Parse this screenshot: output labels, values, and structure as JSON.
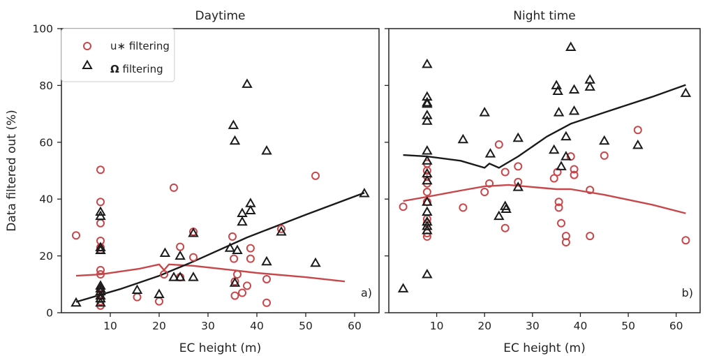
{
  "chart_data": [
    {
      "type": "scatter",
      "title": "Daytime",
      "panel_tag": "a)",
      "xlabel": "EC height (m)",
      "ylabel": "Data filtered out (%)",
      "xlim": [
        0,
        65
      ],
      "ylim": [
        0,
        100
      ],
      "xticks": [
        10,
        20,
        30,
        40,
        50,
        60
      ],
      "yticks": [
        0,
        20,
        40,
        60,
        80,
        100
      ],
      "grid": false,
      "legend_position": "top-left",
      "series": [
        {
          "name": "u* filtering",
          "kind": "points",
          "marker": "circle",
          "color": "#c8474b",
          "points": [
            [
              3,
              27.2
            ],
            [
              8,
              50.3
            ],
            [
              8,
              39
            ],
            [
              8,
              31.5
            ],
            [
              8,
              25.3
            ],
            [
              8,
              23
            ],
            [
              8,
              22.2
            ],
            [
              8,
              15
            ],
            [
              8,
              13.5
            ],
            [
              8,
              8
            ],
            [
              8,
              6.5
            ],
            [
              8,
              4
            ],
            [
              8,
              2.5
            ],
            [
              15.5,
              5.5
            ],
            [
              20,
              4
            ],
            [
              21,
              13.5
            ],
            [
              23,
              44
            ],
            [
              24.3,
              23.2
            ],
            [
              24.3,
              12.5
            ],
            [
              27,
              28.5
            ],
            [
              27,
              19.5
            ],
            [
              35,
              26.8
            ],
            [
              35.3,
              19
            ],
            [
              35.5,
              11
            ],
            [
              35.5,
              6
            ],
            [
              36,
              13.5
            ],
            [
              37,
              7
            ],
            [
              38,
              9.5
            ],
            [
              38.7,
              22.7
            ],
            [
              38.7,
              19
            ],
            [
              42,
              11.8
            ],
            [
              42,
              3.5
            ],
            [
              45,
              29.5
            ],
            [
              52,
              48.2
            ]
          ]
        },
        {
          "name": "Ω filtering",
          "kind": "points",
          "marker": "triangle",
          "color": "#1a1a1a",
          "points": [
            [
              3,
              3.5
            ],
            [
              8,
              35.5
            ],
            [
              8,
              34
            ],
            [
              8,
              23
            ],
            [
              8,
              22
            ],
            [
              8,
              9.5
            ],
            [
              8,
              8.5
            ],
            [
              8,
              7.5
            ],
            [
              8,
              6
            ],
            [
              8,
              5
            ],
            [
              8,
              3.5
            ],
            [
              15.5,
              8
            ],
            [
              20,
              6.5
            ],
            [
              21.2,
              21
            ],
            [
              23,
              12.5
            ],
            [
              24.3,
              20
            ],
            [
              24.3,
              12.5
            ],
            [
              27,
              28
            ],
            [
              27,
              12.5
            ],
            [
              34.5,
              22.8
            ],
            [
              35.2,
              66
            ],
            [
              35.5,
              60.5
            ],
            [
              35.5,
              10.5
            ],
            [
              36,
              22
            ],
            [
              37,
              32
            ],
            [
              37,
              35
            ],
            [
              38,
              80.5
            ],
            [
              38.7,
              38.5
            ],
            [
              38.7,
              36
            ],
            [
              42,
              57
            ],
            [
              42,
              18
            ],
            [
              45,
              28.5
            ],
            [
              52,
              17.5
            ],
            [
              62,
              42
            ]
          ]
        },
        {
          "name": "",
          "kind": "line",
          "color": "#c8474b",
          "points": [
            [
              3,
              13
            ],
            [
              8,
              13.5
            ],
            [
              16,
              15.5
            ],
            [
              20,
              17
            ],
            [
              21,
              15
            ],
            [
              22,
              17
            ],
            [
              27,
              16.5
            ],
            [
              35,
              15
            ],
            [
              40,
              14
            ],
            [
              50,
              12.5
            ],
            [
              58,
              11
            ]
          ]
        },
        {
          "name": "",
          "kind": "line",
          "color": "#1a1a1a",
          "points": [
            [
              3,
              3.8
            ],
            [
              12,
              8.3
            ],
            [
              20,
              13
            ],
            [
              27,
              18
            ],
            [
              38,
              26.5
            ],
            [
              50,
              34.5
            ],
            [
              62,
              42.2
            ]
          ]
        }
      ]
    },
    {
      "type": "scatter",
      "title": "Night time",
      "panel_tag": "b)",
      "xlabel": "EC height (m)",
      "ylabel": "",
      "xlim": [
        0,
        65
      ],
      "ylim": [
        0,
        100
      ],
      "xticks": [
        10,
        20,
        30,
        40,
        50,
        60
      ],
      "yticks": [
        0,
        20,
        40,
        60,
        80,
        100
      ],
      "grid": false,
      "series": [
        {
          "name": "u* filtering",
          "kind": "points",
          "marker": "circle",
          "color": "#c8474b",
          "points": [
            [
              3,
              37.3
            ],
            [
              8,
              52.5
            ],
            [
              8,
              50
            ],
            [
              8,
              48
            ],
            [
              8,
              45.5
            ],
            [
              8,
              42.5
            ],
            [
              8,
              39
            ],
            [
              8,
              33
            ],
            [
              8,
              31.5
            ],
            [
              8,
              28
            ],
            [
              8,
              26.8
            ],
            [
              15.5,
              37
            ],
            [
              20,
              42.5
            ],
            [
              21,
              45.5
            ],
            [
              23,
              59.2
            ],
            [
              24.3,
              49.5
            ],
            [
              24.3,
              29.8
            ],
            [
              27,
              51.5
            ],
            [
              27,
              46
            ],
            [
              34.5,
              47.3
            ],
            [
              35.2,
              49.5
            ],
            [
              35.5,
              39
            ],
            [
              35.5,
              37
            ],
            [
              36,
              31.5
            ],
            [
              37,
              27
            ],
            [
              37,
              24.8
            ],
            [
              38,
              55
            ],
            [
              38.7,
              50.5
            ],
            [
              38.7,
              48.5
            ],
            [
              42,
              43.2
            ],
            [
              42,
              27
            ],
            [
              45,
              55.3
            ],
            [
              52,
              64.3
            ],
            [
              62,
              25.5
            ]
          ]
        },
        {
          "name": "Ω filtering",
          "kind": "points",
          "marker": "triangle",
          "color": "#1a1a1a",
          "points": [
            [
              3,
              8.5
            ],
            [
              8,
              87.5
            ],
            [
              8,
              76
            ],
            [
              8,
              74
            ],
            [
              8,
              73.5
            ],
            [
              8,
              69.5
            ],
            [
              8,
              67.5
            ],
            [
              8,
              57
            ],
            [
              8,
              53.5
            ],
            [
              8,
              49
            ],
            [
              8,
              46.5
            ],
            [
              8,
              39
            ],
            [
              8,
              35.5
            ],
            [
              8,
              32
            ],
            [
              8,
              30.5
            ],
            [
              8,
              29
            ],
            [
              8,
              13.5
            ],
            [
              15.5,
              61
            ],
            [
              20,
              70.5
            ],
            [
              21.2,
              56
            ],
            [
              23,
              34
            ],
            [
              24.3,
              37.5
            ],
            [
              24.5,
              36.5
            ],
            [
              27,
              61.5
            ],
            [
              27,
              44.2
            ],
            [
              34.5,
              57.3
            ],
            [
              35,
              80
            ],
            [
              35.3,
              78
            ],
            [
              35.5,
              70.5
            ],
            [
              36,
              51.5
            ],
            [
              37,
              62
            ],
            [
              37,
              55
            ],
            [
              38,
              93.5
            ],
            [
              38.7,
              78.5
            ],
            [
              38.7,
              71
            ],
            [
              42,
              82
            ],
            [
              42,
              79.5
            ],
            [
              45,
              60.5
            ],
            [
              52,
              59
            ],
            [
              62,
              77.3
            ]
          ]
        },
        {
          "name": "",
          "kind": "line",
          "color": "#c8474b",
          "points": [
            [
              3,
              39.3
            ],
            [
              8,
              40.8
            ],
            [
              15,
              43
            ],
            [
              20,
              44.5
            ],
            [
              25,
              45
            ],
            [
              35,
              43.5
            ],
            [
              38,
              43.5
            ],
            [
              45,
              41.5
            ],
            [
              55,
              38
            ],
            [
              62,
              35
            ]
          ]
        },
        {
          "name": "",
          "kind": "line",
          "color": "#1a1a1a",
          "points": [
            [
              3,
              55.5
            ],
            [
              8,
              55
            ],
            [
              15,
              53.5
            ],
            [
              20,
              51
            ],
            [
              21,
              52.5
            ],
            [
              23,
              51
            ],
            [
              27,
              55
            ],
            [
              33,
              62
            ],
            [
              38,
              66.5
            ],
            [
              45,
              70.5
            ],
            [
              55,
              76
            ],
            [
              62,
              80.2
            ]
          ]
        }
      ]
    }
  ],
  "legend": {
    "items": [
      {
        "label": "u∗ filtering",
        "marker": "circle",
        "color": "#c8474b"
      },
      {
        "label": "Ω filtering",
        "marker": "triangle",
        "color": "#1a1a1a",
        "symbol": "Ω",
        "text": " filtering"
      }
    ]
  }
}
